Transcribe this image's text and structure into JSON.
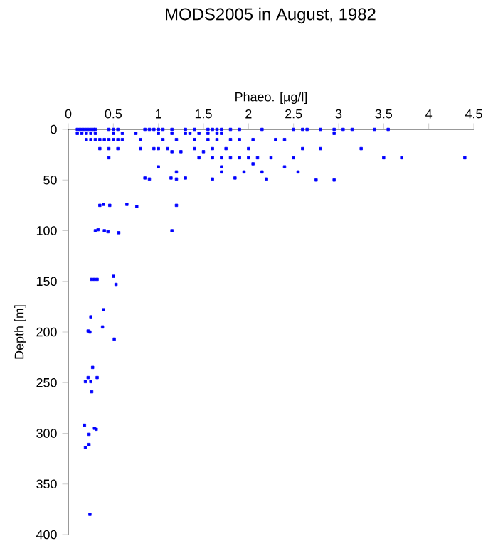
{
  "chart_data": {
    "type": "scatter",
    "title": "MODS2005 in August, 1982",
    "xlabel": "Phaeo. [µg/l]",
    "ylabel": "Depth [m]",
    "x": [
      0.1,
      0.13,
      0.16,
      0.19,
      0.22,
      0.25,
      0.28,
      0.3,
      0.45,
      0.5,
      0.55,
      0.85,
      0.9,
      0.95,
      1.0,
      1.05,
      1.15,
      1.3,
      1.4,
      1.55,
      1.6,
      1.65,
      1.7,
      1.8,
      1.9,
      2.15,
      2.5,
      2.6,
      2.65,
      2.8,
      2.95,
      3.05,
      3.15,
      3.4,
      3.55,
      0.1,
      0.15,
      0.2,
      0.25,
      0.3,
      0.5,
      0.6,
      0.75,
      1.0,
      1.15,
      1.3,
      1.35,
      1.45,
      1.55,
      1.65,
      1.7,
      2.95,
      0.2,
      0.25,
      0.3,
      0.35,
      0.4,
      0.45,
      0.5,
      0.55,
      0.6,
      0.8,
      1.05,
      1.2,
      1.4,
      1.55,
      1.65,
      1.8,
      1.9,
      2.05,
      2.3,
      2.4,
      0.35,
      0.45,
      0.55,
      0.8,
      0.95,
      1.0,
      1.1,
      1.4,
      1.6,
      1.75,
      2.0,
      2.6,
      2.8,
      3.25,
      1.15,
      1.25,
      1.5,
      0.45,
      1.45,
      1.6,
      1.7,
      1.8,
      1.9,
      2.0,
      2.1,
      2.25,
      2.5,
      3.5,
      3.7,
      4.4,
      2.05,
      1.0,
      1.7,
      2.4,
      1.2,
      1.7,
      1.95,
      2.15,
      2.55,
      0.85,
      0.9,
      1.14,
      1.2,
      1.3,
      1.6,
      1.85,
      2.2,
      2.75,
      2.95,
      0.35,
      0.39,
      0.46,
      0.65,
      0.76,
      1.2,
      0.3,
      0.33,
      0.4,
      0.44,
      0.56,
      1.15,
      0.26,
      0.29,
      0.32,
      0.5,
      0.53,
      0.39,
      0.25,
      0.38,
      0.22,
      0.24,
      0.51,
      0.27,
      0.22,
      0.32,
      0.19,
      0.25,
      0.26,
      0.18,
      0.29,
      0.31,
      0.23,
      0.23,
      0.19,
      0.24
    ],
    "values": [
      0,
      0,
      0,
      0,
      0,
      0,
      0,
      0,
      0,
      0,
      0,
      0,
      0,
      0,
      0,
      0,
      0,
      0,
      0,
      0,
      0,
      0,
      0,
      0,
      0,
      0,
      0,
      0,
      0,
      0,
      0,
      0,
      0,
      0,
      0,
      4,
      4,
      4,
      4,
      4,
      4,
      4,
      4,
      4,
      4,
      4,
      4,
      4,
      4,
      4,
      4,
      4,
      10,
      10,
      10,
      10,
      10,
      10,
      10,
      10,
      10,
      10,
      10,
      10,
      10,
      10,
      10,
      10,
      10,
      10,
      10,
      10,
      19,
      19,
      19,
      19,
      19,
      19,
      19,
      19,
      19,
      19,
      19,
      19,
      19,
      19,
      22,
      22,
      22,
      28,
      28,
      28,
      28,
      28,
      28,
      28,
      28,
      28,
      28,
      28,
      28,
      28,
      34,
      37,
      37,
      37,
      42,
      42,
      42,
      42,
      42,
      48,
      49,
      48,
      49,
      48,
      49,
      48,
      49,
      50,
      50,
      75,
      74,
      75,
      74,
      76,
      75,
      100,
      99,
      100,
      101,
      102,
      100,
      148,
      148,
      148,
      145,
      153,
      178,
      185,
      195,
      199,
      200,
      207,
      235,
      245,
      245,
      249,
      249,
      259,
      292,
      295,
      296,
      301,
      311,
      314,
      380
    ],
    "color": "#0000ff",
    "marker": "square",
    "xlim": [
      0,
      4.5
    ],
    "xticks": [
      0,
      0.5,
      1,
      1.5,
      2,
      2.5,
      3,
      3.5,
      4,
      4.5
    ],
    "ylim": [
      400,
      0
    ],
    "yticks": [
      0,
      50,
      100,
      150,
      200,
      250,
      300,
      350,
      400
    ]
  }
}
